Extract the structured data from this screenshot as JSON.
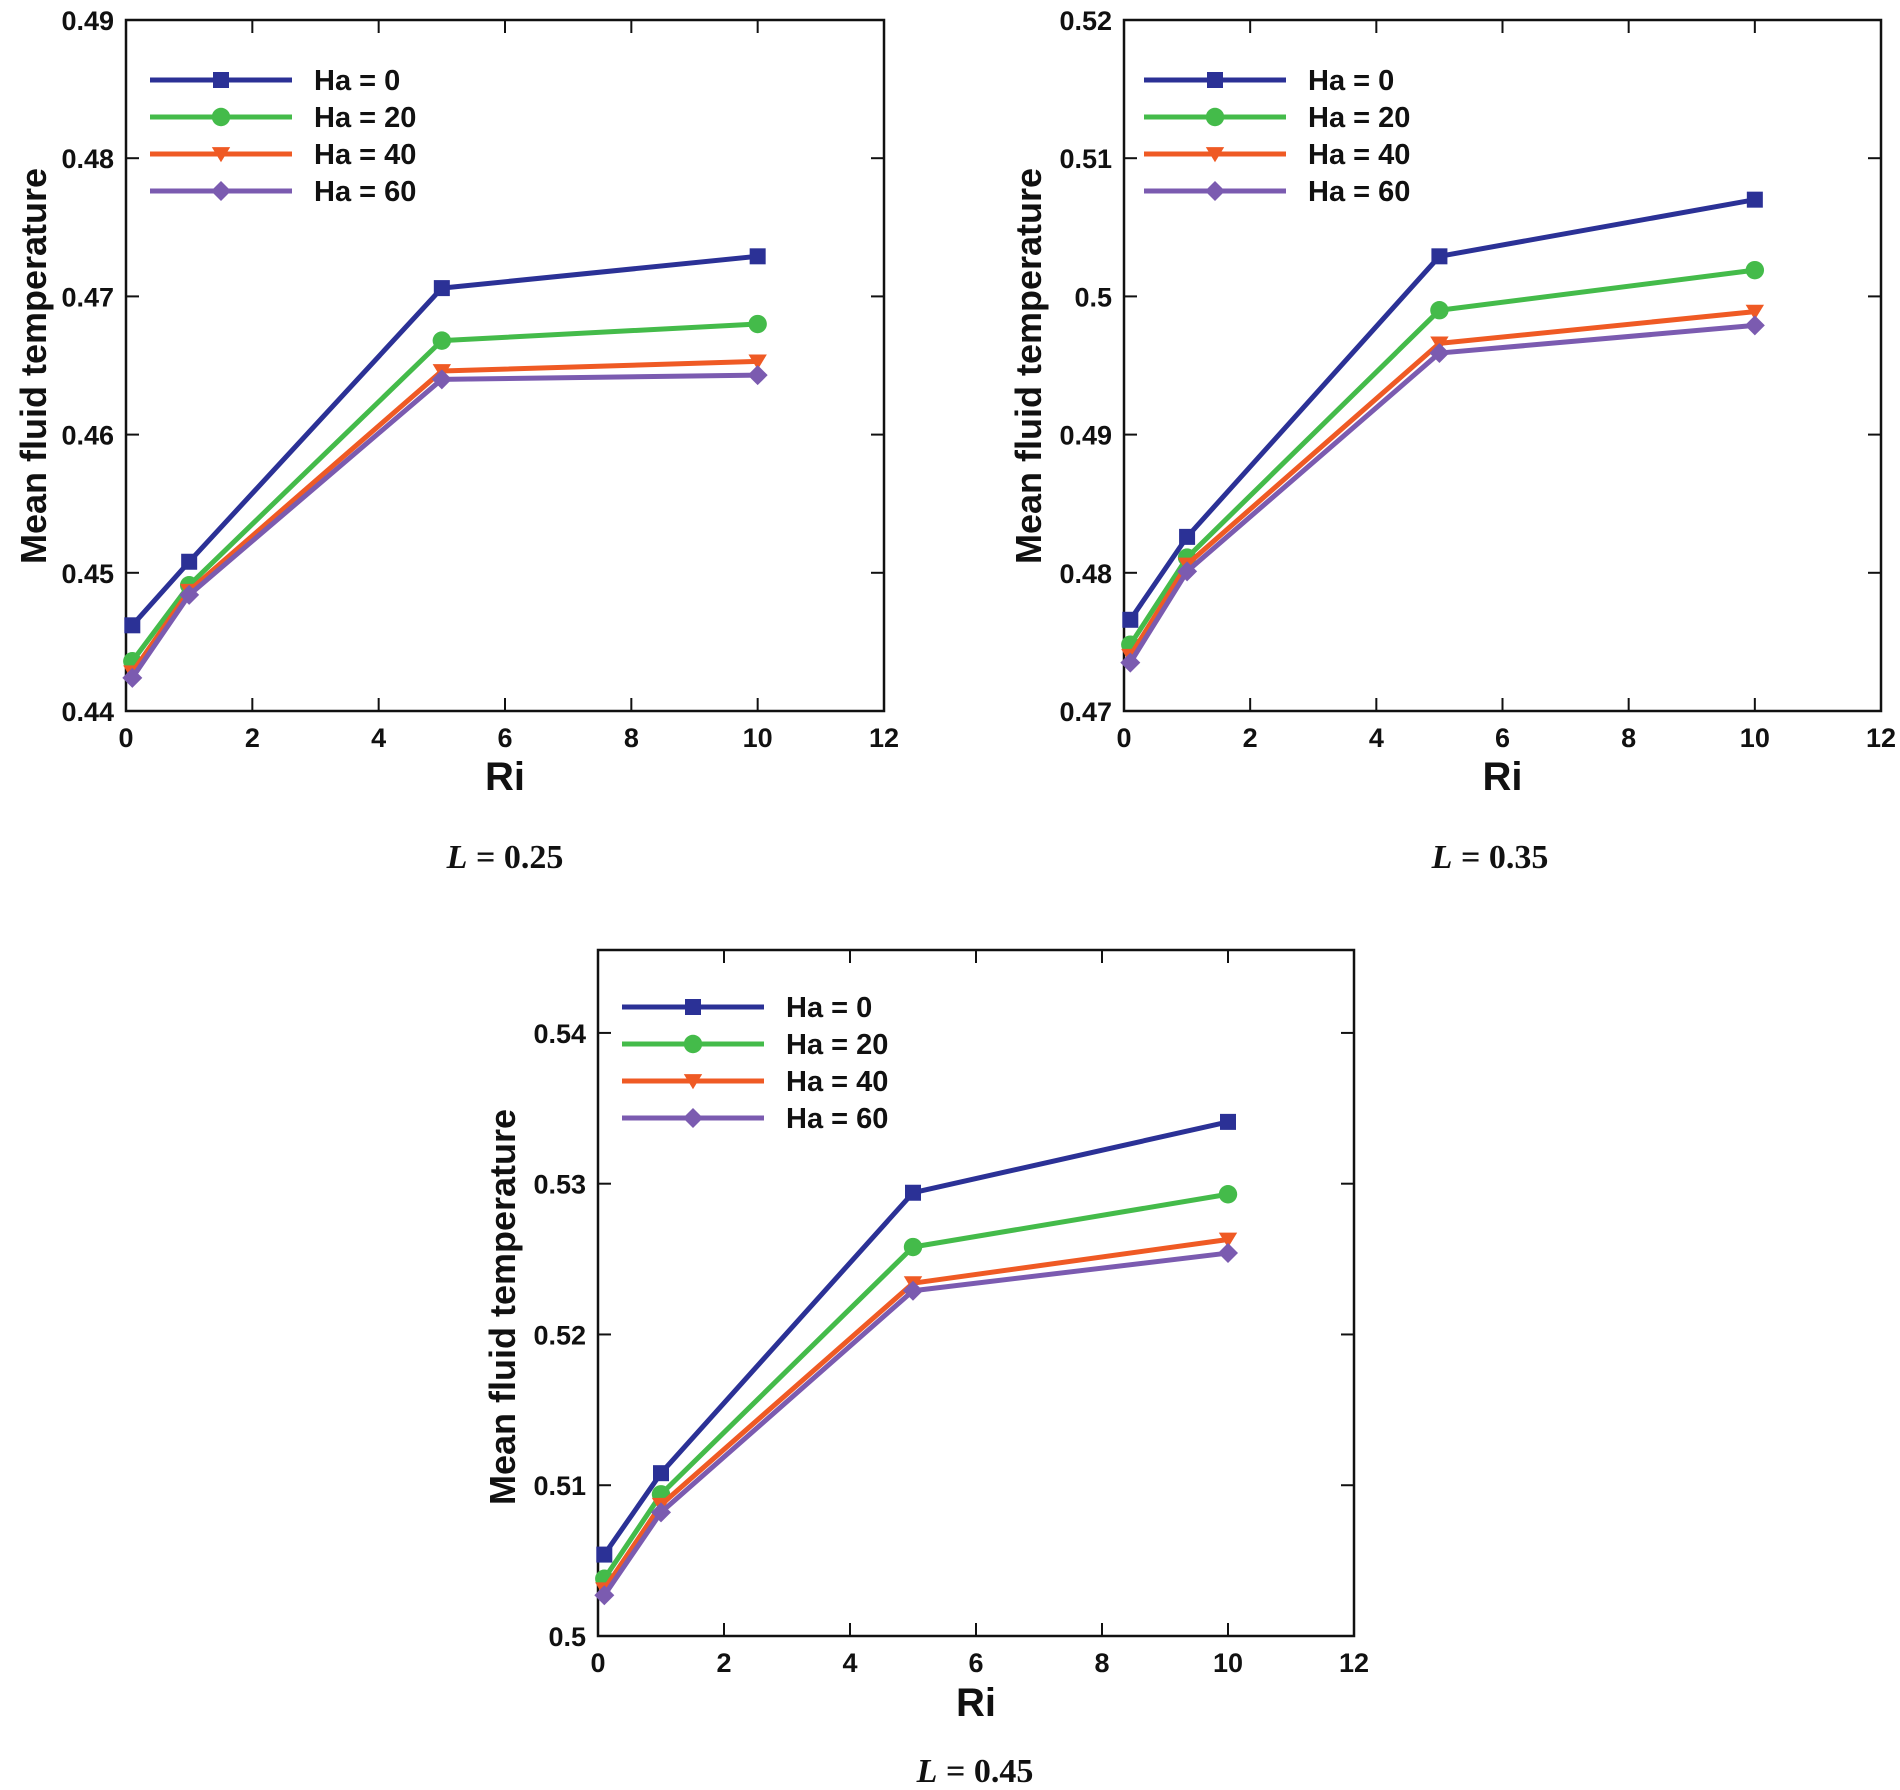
{
  "chart_data": [
    {
      "type": "line",
      "caption_var": "L",
      "caption_rest": " = 0.25",
      "xlabel": "Ri",
      "ylabel": "Mean fluid temperature",
      "xlim": [
        0,
        12
      ],
      "ylim": [
        0.44,
        0.49
      ],
      "x_ticks": [
        0,
        2,
        4,
        6,
        8,
        10,
        12
      ],
      "y_ticks": [
        0.44,
        0.45,
        0.46,
        0.47,
        0.48,
        0.49
      ],
      "y_tick_labels": [
        "0.44",
        "0.45",
        "0.46",
        "0.47",
        "0.48",
        "0.49"
      ],
      "x": [
        0.1,
        1,
        5,
        10
      ],
      "legend_position": "top-left",
      "series": [
        {
          "name": "Ha = 0",
          "values": [
            0.4462,
            0.4508,
            0.4706,
            0.4729
          ]
        },
        {
          "name": "Ha = 20",
          "values": [
            0.4436,
            0.4491,
            0.4668,
            0.468
          ]
        },
        {
          "name": "Ha = 40",
          "values": [
            0.4428,
            0.4487,
            0.4646,
            0.4653
          ]
        },
        {
          "name": "Ha = 60",
          "values": [
            0.4424,
            0.4484,
            0.464,
            0.4643
          ]
        }
      ]
    },
    {
      "type": "line",
      "caption_var": "L",
      "caption_rest": " = 0.35",
      "xlabel": "Ri",
      "ylabel": "Mean fluid temperature",
      "xlim": [
        0,
        12
      ],
      "ylim": [
        0.47,
        0.52
      ],
      "x_ticks": [
        0,
        2,
        4,
        6,
        8,
        10,
        12
      ],
      "y_ticks": [
        0.47,
        0.48,
        0.49,
        0.5,
        0.51,
        0.52
      ],
      "y_tick_labels": [
        "0.47",
        "0.48",
        "0.49",
        "0.5",
        "0.51",
        "0.52"
      ],
      "x": [
        0.1,
        1,
        5,
        10
      ],
      "legend_position": "top-left",
      "series": [
        {
          "name": "Ha = 0",
          "values": [
            0.4766,
            0.4826,
            0.5029,
            0.507
          ]
        },
        {
          "name": "Ha = 20",
          "values": [
            0.4748,
            0.4811,
            0.499,
            0.5019
          ]
        },
        {
          "name": "Ha = 40",
          "values": [
            0.474,
            0.4806,
            0.4966,
            0.4989
          ]
        },
        {
          "name": "Ha = 60",
          "values": [
            0.4735,
            0.4801,
            0.4959,
            0.4979
          ]
        }
      ]
    },
    {
      "type": "line",
      "caption_var": "L",
      "caption_rest": " = 0.45",
      "xlabel": "Ri",
      "ylabel": "Mean fluid temperature",
      "xlim": [
        0,
        12
      ],
      "ylim": [
        0.5,
        0.5455
      ],
      "x_ticks": [
        0,
        2,
        4,
        6,
        8,
        10,
        12
      ],
      "y_ticks": [
        0.5,
        0.51,
        0.52,
        0.53,
        0.54
      ],
      "y_tick_labels": [
        "0.5",
        "0.51",
        "0.52",
        "0.53",
        "0.54"
      ],
      "x": [
        0.1,
        1,
        5,
        10
      ],
      "legend_position": "top-left",
      "series": [
        {
          "name": "Ha = 0",
          "values": [
            0.5054,
            0.5108,
            0.5294,
            0.5341
          ]
        },
        {
          "name": "Ha = 20",
          "values": [
            0.5038,
            0.5094,
            0.5258,
            0.5293
          ]
        },
        {
          "name": "Ha = 40",
          "values": [
            0.5031,
            0.5087,
            0.5234,
            0.5263
          ]
        },
        {
          "name": "Ha = 60",
          "values": [
            0.5027,
            0.5082,
            0.5229,
            0.5254
          ]
        }
      ]
    }
  ],
  "series_colors": [
    "#2b3196",
    "#44bb4a",
    "#ef5a24",
    "#7b5bb0"
  ],
  "series_markers": [
    "square",
    "circle",
    "triangle-down",
    "diamond"
  ]
}
